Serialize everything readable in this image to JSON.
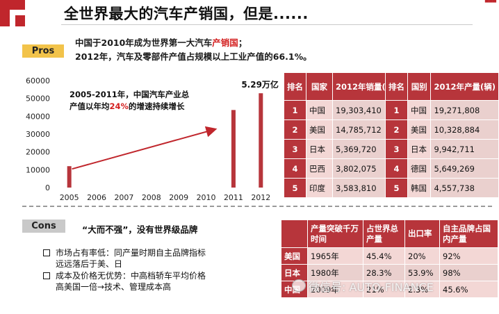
{
  "header": {
    "title": "全世界最大的汽车产销国，但是......"
  },
  "pros": {
    "tag": "Pros",
    "line1_prefix": "中国于2010年成为世界第一大汽车",
    "line1_highlight": "产销国",
    "line1_suffix": "；",
    "line2": "2012年，汽车及零部件产值占规模以上工业产值的66.1%。"
  },
  "chart_annotation": {
    "line1": "2005-2011年，中国汽车产业总",
    "line2_prefix": "产值以年均",
    "line2_highlight": "24%",
    "line2_suffix": "的增速持续增长"
  },
  "chart_data": {
    "type": "bar",
    "categories": [
      "2005",
      "2006",
      "2007",
      "2008",
      "2009",
      "2010",
      "2011",
      "2012"
    ],
    "values": [
      12000,
      null,
      null,
      null,
      null,
      null,
      43500,
      52900
    ],
    "yticks": [
      0,
      10000,
      20000,
      30000,
      40000,
      50000,
      60000
    ],
    "ylim": [
      0,
      60000
    ],
    "bar_label": "5.29万亿",
    "bar_color": "#b7353b",
    "trend": {
      "from": "2005",
      "to": "2010",
      "color": "#c0262c"
    },
    "grid": false
  },
  "sales_table": {
    "headers": [
      "排名",
      "国家",
      "2012年销量(辆)"
    ],
    "rows": [
      [
        "1",
        "中国",
        "19,303,410"
      ],
      [
        "2",
        "美国",
        "14,785,712"
      ],
      [
        "3",
        "日本",
        "5,369,720"
      ],
      [
        "4",
        "巴西",
        "3,802,075"
      ],
      [
        "5",
        "印度",
        "3,583,810"
      ]
    ]
  },
  "production_table": {
    "headers": [
      "排名",
      "国别",
      "2012年产量(辆)"
    ],
    "rows": [
      [
        "1",
        "中国",
        "19,271,808"
      ],
      [
        "2",
        "美国",
        "10,328,884"
      ],
      [
        "3",
        "日本",
        "9,942,711"
      ],
      [
        "4",
        "德国",
        "5,649,269"
      ],
      [
        "5",
        "韩国",
        "4,557,738"
      ]
    ]
  },
  "cons": {
    "tag": "Cons",
    "headline": "“大而不强”，没有世界级品牌",
    "bullets": [
      {
        "line1": "市场占有率低：同产量时期自主品牌指标",
        "line2": "远远落后于美、日"
      },
      {
        "line1": "成本及价格无优势：中高档轿车平均价格",
        "line2": "高美国一倍→技术、管理成本高"
      }
    ]
  },
  "compare_table": {
    "headers": [
      "",
      "产量突破千万时间",
      "占世界总产量",
      "出口率",
      "自主品牌占国内产量"
    ],
    "rows": [
      [
        "美国",
        "1965年",
        "45.4%",
        "20%",
        "92%"
      ],
      [
        "日本",
        "1980年",
        "28.3%",
        "53.9%",
        "98%"
      ],
      [
        "中国",
        "2009年",
        "21%",
        "2.3%",
        "45.6%"
      ]
    ]
  },
  "watermark": {
    "text": "微信号: AUTO-FINANCE"
  }
}
